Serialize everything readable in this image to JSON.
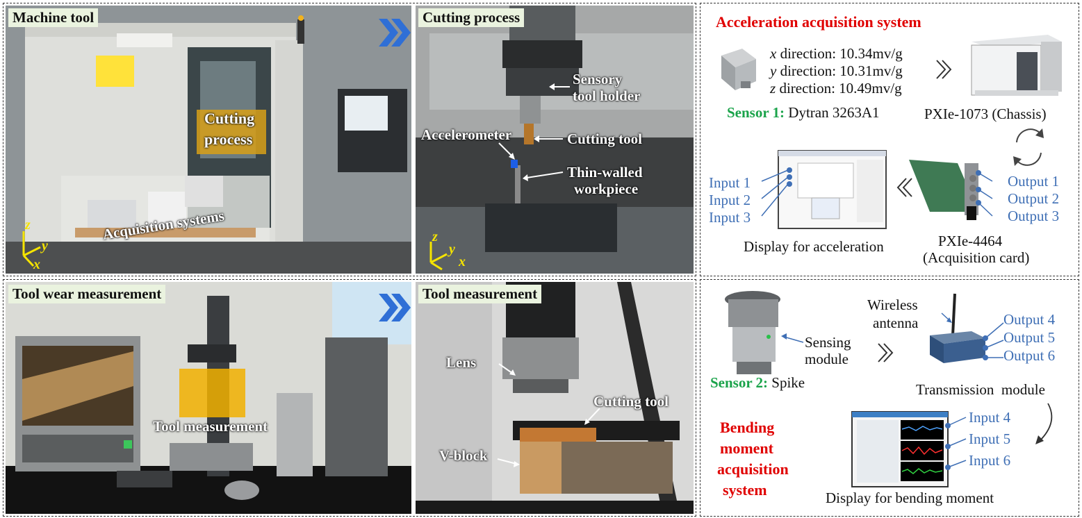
{
  "panels": {
    "machine_tool": {
      "label": "Machine tool",
      "cutting_overlay": [
        "Cutting",
        "process"
      ],
      "acq_overlay": "Acquisition systems",
      "axes": {
        "z": "z",
        "y": "y",
        "x": "x"
      }
    },
    "cutting_process": {
      "label": "Cutting process",
      "sensory_holder": [
        "Sensory",
        "tool holder"
      ],
      "accelerometer": "Accelerometer",
      "cutting_tool": "Cutting tool",
      "thin_walled": [
        "Thin-walled",
        "workpiece"
      ],
      "axes": {
        "z": "z",
        "y": "y",
        "x": "x"
      }
    },
    "tool_wear": {
      "label": "Tool wear measurement",
      "tool_meas_overlay": "Tool measurement"
    },
    "tool_measurement": {
      "label": "Tool measurement",
      "lens": "Lens",
      "cutting_tool": "Cutting tool",
      "vblock": "V-block"
    }
  },
  "acceleration": {
    "title": "Acceleration acquisition system",
    "directions": [
      {
        "axis": "x",
        "text": " direction: 10.34mv/g"
      },
      {
        "axis": "y",
        "text": " direction: 10.31mv/g"
      },
      {
        "axis": "z",
        "text": " direction: 10.49mv/g"
      }
    ],
    "sensor_prefix": "Sensor 1:",
    "sensor_name": " Dytran 3263A1",
    "chassis": "PXIe-1073 (Chassis)",
    "outputs": [
      "Output 1",
      "Output 2",
      "Output 3"
    ],
    "inputs": [
      "Input 1",
      "Input 2",
      "Input 3"
    ],
    "display": "Display for acceleration",
    "card": [
      "PXIe-4464",
      "(Acquisition card)"
    ]
  },
  "bending": {
    "wireless": [
      "Wireless",
      "antenna"
    ],
    "outputs": [
      "Output 4",
      "Output 5",
      "Output 6"
    ],
    "sensing": [
      "Sensing",
      "module"
    ],
    "sensor_prefix": "Sensor 2:",
    "sensor_name": " Spike",
    "transmission": "Transmission  module",
    "title": [
      "Bending",
      "moment",
      "acquisition",
      "system"
    ],
    "inputs": [
      "Input 4",
      "Input 5",
      "Input 6"
    ],
    "display": "Display for bending moment"
  },
  "colors": {
    "accent_red": "#e00000",
    "accent_green": "#1aa34a",
    "label_blue": "#3f6fb5",
    "chevron_blue": "#2f6fd6"
  }
}
